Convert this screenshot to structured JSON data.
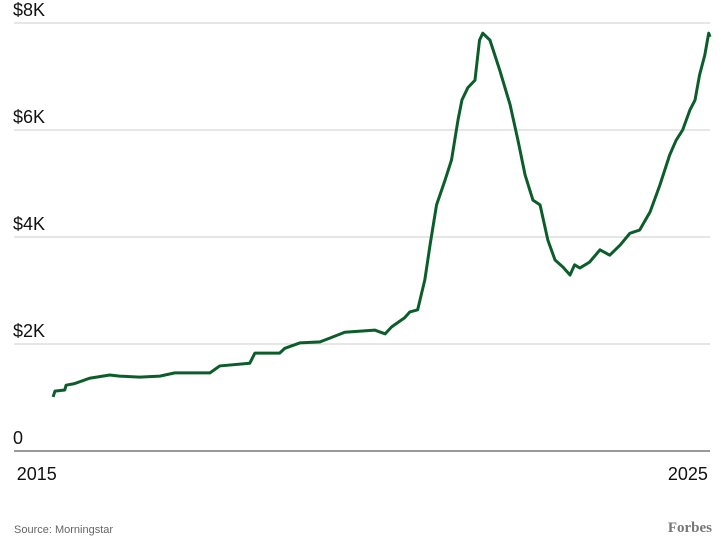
{
  "chart_data": {
    "type": "line",
    "x": [
      2015.25,
      2015.28,
      2015.43,
      2015.45,
      2015.58,
      2015.81,
      2016.12,
      2016.27,
      2016.58,
      2016.89,
      2017.12,
      2017.5,
      2017.66,
      2017.81,
      2018.27,
      2018.35,
      2018.73,
      2018.81,
      2019.04,
      2019.35,
      2019.5,
      2019.73,
      2020.19,
      2020.35,
      2020.45,
      2020.65,
      2020.73,
      2020.85,
      2020.96,
      2021.04,
      2021.14,
      2021.27,
      2021.37,
      2021.47,
      2021.53,
      2021.62,
      2021.73,
      2021.8,
      2021.85,
      2021.96,
      2022.11,
      2022.27,
      2022.39,
      2022.5,
      2022.62,
      2022.73,
      2022.85,
      2022.96,
      2023.08,
      2023.19,
      2023.26,
      2023.34,
      2023.49,
      2023.65,
      2023.8,
      2023.96,
      2024.11,
      2024.26,
      2024.42,
      2024.57,
      2024.72,
      2024.82,
      2024.92,
      2025.03,
      2025.11,
      2025.18,
      2025.26,
      2025.32,
      2025.34
    ],
    "series": [
      {
        "color": "#0b5e2a",
        "values": [
          1010,
          1120,
          1140,
          1230,
          1260,
          1360,
          1420,
          1400,
          1380,
          1400,
          1460,
          1460,
          1460,
          1590,
          1640,
          1830,
          1830,
          1920,
          2020,
          2040,
          2110,
          2220,
          2260,
          2190,
          2320,
          2490,
          2600,
          2640,
          3200,
          3850,
          4600,
          5060,
          5440,
          6190,
          6560,
          6790,
          6930,
          7680,
          7810,
          7680,
          7120,
          6470,
          5810,
          5160,
          4690,
          4600,
          3940,
          3570,
          3440,
          3290,
          3480,
          3420,
          3530,
          3760,
          3660,
          3850,
          4070,
          4130,
          4470,
          4970,
          5530,
          5810,
          6000,
          6370,
          6560,
          7030,
          7400,
          7810,
          7740
        ]
      }
    ],
    "xlim": [
      2014.65,
      2025.34
    ],
    "xticks": [
      2015,
      2025
    ],
    "ylim": [
      0,
      8000
    ],
    "yticks": [
      0,
      {
        "value": 2000,
        "label": "$2K"
      },
      {
        "value": 4000,
        "label": "$4K"
      },
      {
        "value": 6000,
        "label": "$6K"
      },
      {
        "value": 8000,
        "label": "$8K"
      }
    ],
    "grid": true,
    "source": "Source: Morningstar",
    "brand": "Forbes"
  }
}
